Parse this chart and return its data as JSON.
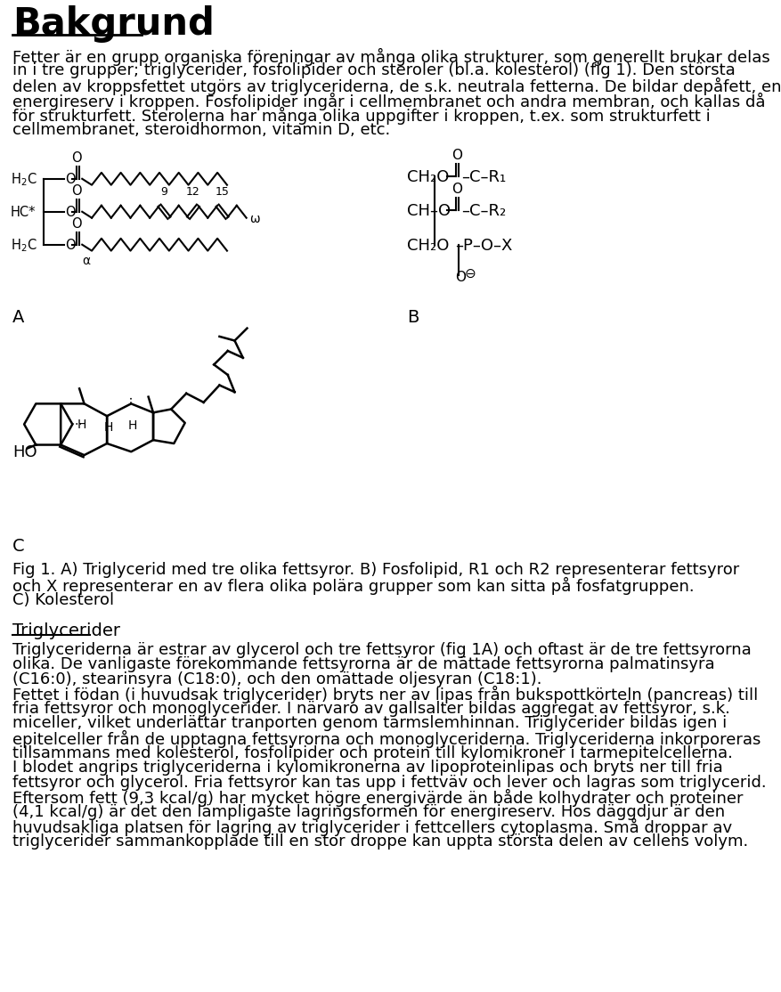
{
  "title": "Bakgrund",
  "bg_color": "#ffffff",
  "text_color": "#000000",
  "intro_text": [
    "Fetter är en grupp organiska föreningar av många olika strukturer, som generellt brukar delas",
    "in i tre grupper; triglycerider, fosfolipider och steroler (bl.a. kolesterol) (fig 1). Den största",
    "delen av kroppsfettet utgörs av triglyceriderna, de s.k. neutrala fetterna. De bildar depåfett, en",
    "energireserv i kroppen. Fosfolipider ingår i cellmembranet och andra membran, och kallas då",
    "för strukturfett. Sterolerna har många olika uppgifter i kroppen, t.ex. som strukturfett i",
    "cellmembranet, steroidhormon, vitamin D, etc."
  ],
  "label_A": "A",
  "label_B": "B",
  "label_C": "C",
  "fig_caption": [
    "Fig 1. A) Triglycerid med tre olika fettsyror. B) Fosfolipid, R1 och R2 representerar fettsyror",
    "och X representerar en av flera olika polära grupper som kan sitta på fosfatgruppen.",
    "C) Kolesterol"
  ],
  "section_title": "Triglycerider",
  "body_text": [
    "Triglyceriderna är estrar av glycerol och tre fettsyror (fig 1A) och oftast är de tre fettsyrorna",
    "olika. De vanligaste förekommande fettsyrorna är de mättade fettsyrorna palmatinsyra",
    "(C16:0), stearinsyra (C18:0), och den omättade oljesyran (C18:1).",
    "Fettet i födan (i huvudsak triglycerider) bryts ner av lipas från bukspottkörteln (pancreas) till",
    "fria fettsyror och monoglycerider. I närvaro av gallsalter bildas aggregat av fettsyror, s.k.",
    "miceller, vilket underlättar tranporten genom tarmslemhinnan. Triglycerider bildas igen i",
    "epitelceller från de upptagna fettsyrorna och monoglyceriderna. Triglyceriderna inkorporeras",
    "tillsammans med kolesterol, fosfolipider och protein till kylomikroner i tarmepitelcellerna.",
    "I blodet angrips triglyceriderna i kylomikronerna av lipoproteinlipas och bryts ner till fria",
    "fettsyror och glycerol. Fria fettsyror kan tas upp i fettväv och lever och lagras som triglycerid.",
    "Eftersom fett (9,3 kcal/g) har mycket högre energivärde än både kolhydrater och proteiner",
    "(4,1 kcal/g) är det den lämpligaste lagringsformen för energireserv. Hos däggdjur är den",
    "huvudsakliga platsen för lagring av triglycerider i fettcellers cytoplasma. Små droppar av",
    "triglycerider sammankopplade till en stor droppe kan uppta största delen av cellens volym."
  ]
}
